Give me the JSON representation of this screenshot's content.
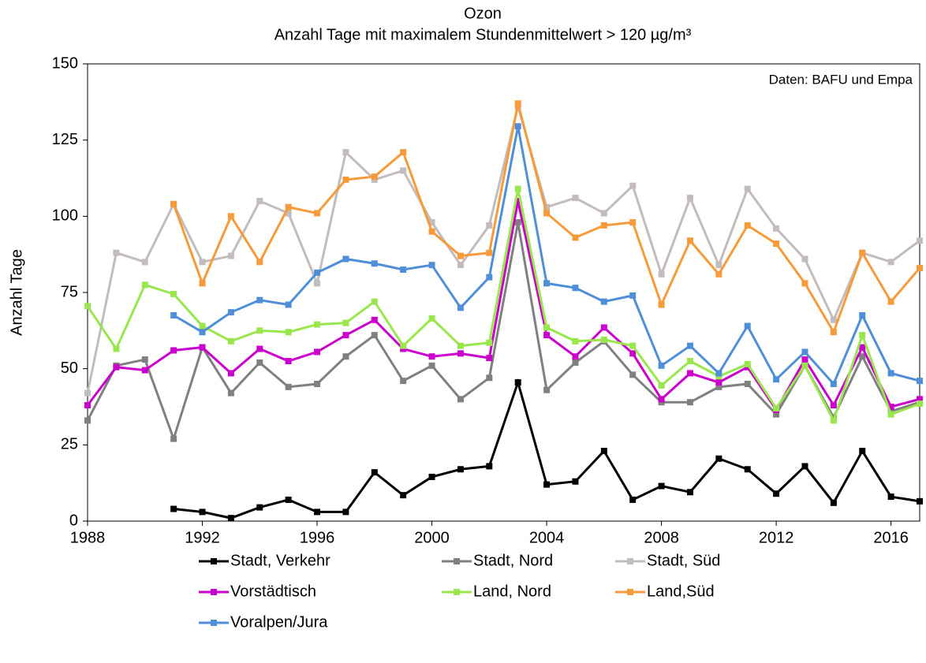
{
  "chart_data": {
    "type": "line",
    "title": "Ozon",
    "subtitle": "Anzahl Tage mit maximalem Stundenmittelwert > 120 µg/m³",
    "y_label": "Anzahl Tage",
    "annotation": "Daten: BAFU und Empa",
    "x": [
      1988,
      1989,
      1990,
      1991,
      1992,
      1993,
      1994,
      1995,
      1996,
      1997,
      1998,
      1999,
      2000,
      2001,
      2002,
      2003,
      2004,
      2005,
      2006,
      2007,
      2008,
      2009,
      2010,
      2011,
      2012,
      2013,
      2014,
      2015,
      2016,
      2017
    ],
    "xlim": [
      1988,
      2017
    ],
    "xticks": [
      1988,
      1992,
      1996,
      2000,
      2004,
      2008,
      2012,
      2016
    ],
    "ylim": [
      0,
      150
    ],
    "yticks": [
      0,
      25,
      50,
      75,
      100,
      125,
      150
    ],
    "grid": false,
    "series": [
      {
        "name": "Stadt, Verkehr",
        "color": "#000000",
        "values": [
          null,
          null,
          null,
          4,
          3,
          1,
          4.5,
          7,
          3,
          3,
          16,
          8.5,
          14.5,
          17,
          18,
          45.5,
          12,
          13,
          23,
          7,
          11.5,
          9.5,
          20.5,
          17,
          9,
          18,
          6,
          23,
          8,
          6.5
        ]
      },
      {
        "name": "Stadt, Nord",
        "color": "#808080",
        "values": [
          33,
          51,
          53,
          27,
          57,
          42,
          52,
          44,
          45,
          54,
          61,
          46,
          51,
          40,
          47,
          98,
          43,
          52,
          59,
          48,
          39,
          39,
          44,
          45,
          35,
          51,
          34,
          54,
          36,
          39
        ]
      },
      {
        "name": "Stadt, Süd",
        "color": "#c4bcbc",
        "values": [
          42,
          88,
          85,
          104,
          85,
          87,
          105,
          101,
          78,
          121,
          112,
          115,
          98,
          84,
          97,
          136,
          103,
          106,
          101,
          110,
          81,
          106,
          84,
          109,
          96,
          86,
          66,
          88,
          85,
          92
        ]
      },
      {
        "name": "Vorstädtisch",
        "color": "#cc00cc",
        "values": [
          38,
          50.5,
          49.5,
          56,
          57,
          48.5,
          56.5,
          52.5,
          55.5,
          61,
          66,
          56.5,
          54,
          55,
          53.5,
          105,
          61,
          54,
          63.5,
          55,
          40,
          48.5,
          45.5,
          50.5,
          36.5,
          53,
          38,
          57,
          37.5,
          40
        ]
      },
      {
        "name": "Land, Nord",
        "color": "#99e64d",
        "values": [
          70.5,
          56.5,
          77.5,
          74.5,
          64,
          59,
          62.5,
          62,
          64.5,
          65,
          72,
          57.5,
          66.5,
          57.5,
          58.5,
          109,
          63.5,
          59,
          59.5,
          57.5,
          44.5,
          52.5,
          47.5,
          51.5,
          37,
          51,
          33,
          61,
          35,
          38.5
        ]
      },
      {
        "name": "Land,Süd",
        "color": "#f79a3a",
        "values": [
          null,
          null,
          null,
          104,
          78,
          100,
          85,
          103,
          101,
          112,
          113,
          121,
          95,
          87,
          88,
          137,
          101,
          93,
          97,
          98,
          71,
          92,
          81,
          97,
          91,
          78,
          62,
          88,
          72,
          83
        ]
      },
      {
        "name": "Voralpen/Jura",
        "color": "#4f8fd8",
        "values": [
          null,
          null,
          null,
          67.5,
          62,
          68.5,
          72.5,
          71,
          81.5,
          86,
          84.5,
          82.5,
          84,
          70,
          80,
          129.5,
          78,
          76.5,
          72,
          74,
          51,
          57.5,
          48.5,
          64,
          46.5,
          55.5,
          45,
          67.5,
          48.5,
          46
        ]
      }
    ]
  }
}
